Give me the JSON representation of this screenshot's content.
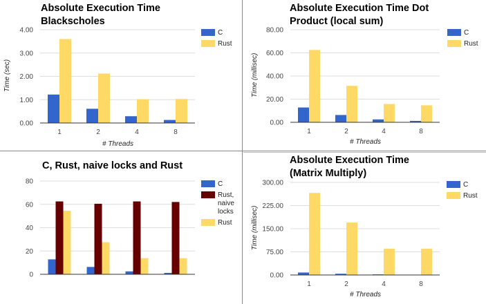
{
  "colors": {
    "c": "#3366cc",
    "rust": "#ffd966",
    "rust_naive": "#660000",
    "axis": "#333333",
    "grid": "#dddddd"
  },
  "chart_data": [
    {
      "type": "bar",
      "title": "Absolute Execution Time Blackscholes",
      "xlabel": "# Threads",
      "ylabel": "Time (sec)",
      "categories": [
        "1",
        "2",
        "4",
        "8"
      ],
      "ylim": [
        0,
        4
      ],
      "yticks": [
        "0.00",
        "1.00",
        "2.00",
        "3.00",
        "4.00"
      ],
      "grid": true,
      "legend": "right",
      "series": [
        {
          "name": "C",
          "color": "#3366cc",
          "values": [
            1.22,
            0.61,
            0.29,
            0.13
          ]
        },
        {
          "name": "Rust",
          "color": "#ffd966",
          "values": [
            3.6,
            2.12,
            1.02,
            1.03
          ]
        }
      ]
    },
    {
      "type": "bar",
      "title": "Absolute Execution Time Dot Product (local sum)",
      "xlabel": "# Threads",
      "ylabel": "Time (millisec)",
      "categories": [
        "1",
        "2",
        "4",
        "8"
      ],
      "ylim": [
        0,
        80
      ],
      "yticks": [
        "0.00",
        "20.00",
        "40.00",
        "60.00",
        "80.00"
      ],
      "grid": true,
      "legend": "right",
      "series": [
        {
          "name": "C",
          "color": "#3366cc",
          "values": [
            12.8,
            6.3,
            2.5,
            1.2
          ]
        },
        {
          "name": "Rust",
          "color": "#ffd966",
          "values": [
            62.5,
            31.5,
            15.8,
            14.7
          ]
        }
      ]
    },
    {
      "type": "bar",
      "title": "C, Rust, naive locks and Rust",
      "xlabel": "",
      "ylabel": "",
      "categories": [
        "",
        "",
        "",
        ""
      ],
      "ylim": [
        0,
        80
      ],
      "yticks": [
        "0",
        "20",
        "40",
        "60",
        "80"
      ],
      "grid": true,
      "legend": "right",
      "series": [
        {
          "name": "C",
          "color": "#3366cc",
          "values": [
            12.8,
            6.3,
            2.5,
            1.2
          ]
        },
        {
          "name": "Rust, naive locks",
          "color": "#660000",
          "values": [
            62.5,
            60.5,
            62.5,
            62.0
          ]
        },
        {
          "name": "Rust",
          "color": "#ffd966",
          "values": [
            54.5,
            27.5,
            13.8,
            13.8
          ]
        }
      ]
    },
    {
      "type": "bar",
      "title": "Absolute Execution Time (Matrix Multiply)",
      "xlabel": "# Threads",
      "ylabel": "Time (millisec)",
      "categories": [
        "1",
        "2",
        "4",
        "8"
      ],
      "ylim": [
        0,
        300
      ],
      "yticks": [
        "0.00",
        "75.00",
        "150.00",
        "225.00",
        "300.00"
      ],
      "grid": true,
      "legend": "right",
      "series": [
        {
          "name": "C",
          "color": "#3366cc",
          "values": [
            8,
            4,
            2,
            1
          ]
        },
        {
          "name": "Rust",
          "color": "#ffd966",
          "values": [
            266,
            170,
            85,
            85
          ]
        }
      ]
    }
  ]
}
